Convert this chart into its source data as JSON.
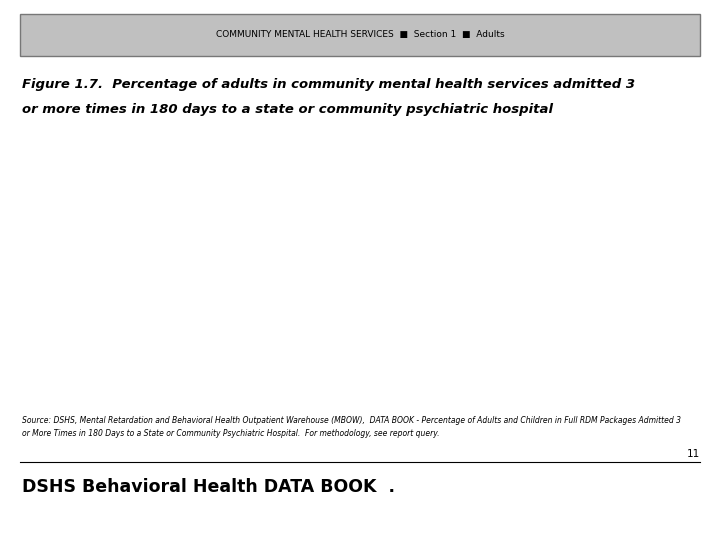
{
  "header_text": "COMMUNITY MENTAL HEALTH SERVICES  ■  Section 1  ■  Adults",
  "header_bg_color": "#c0c0c0",
  "header_border_color": "#777777",
  "header_fontsize": 6.5,
  "figure_title_line1": "Figure 1.7.  Percentage of adults in community mental health services admitted 3",
  "figure_title_line2": "or more times in 180 days to a state or community psychiatric hospital",
  "figure_title_fontsize": 9.5,
  "source_text": "Source: DSHS, Mental Retardation and Behavioral Health Outpatient Warehouse (MBOW),  DATA BOOK - Percentage of Adults and Children in Full RDM Packages Admitted 3\nor More Times in 180 Days to a State or Community Psychiatric Hospital.  For methodology, see report query.",
  "source_fontsize": 5.5,
  "footer_text": "DSHS Behavioral Health DATA BOOK  .",
  "footer_fontsize": 12.5,
  "page_number": "11",
  "page_number_fontsize": 7.5,
  "bg_color": "#ffffff"
}
